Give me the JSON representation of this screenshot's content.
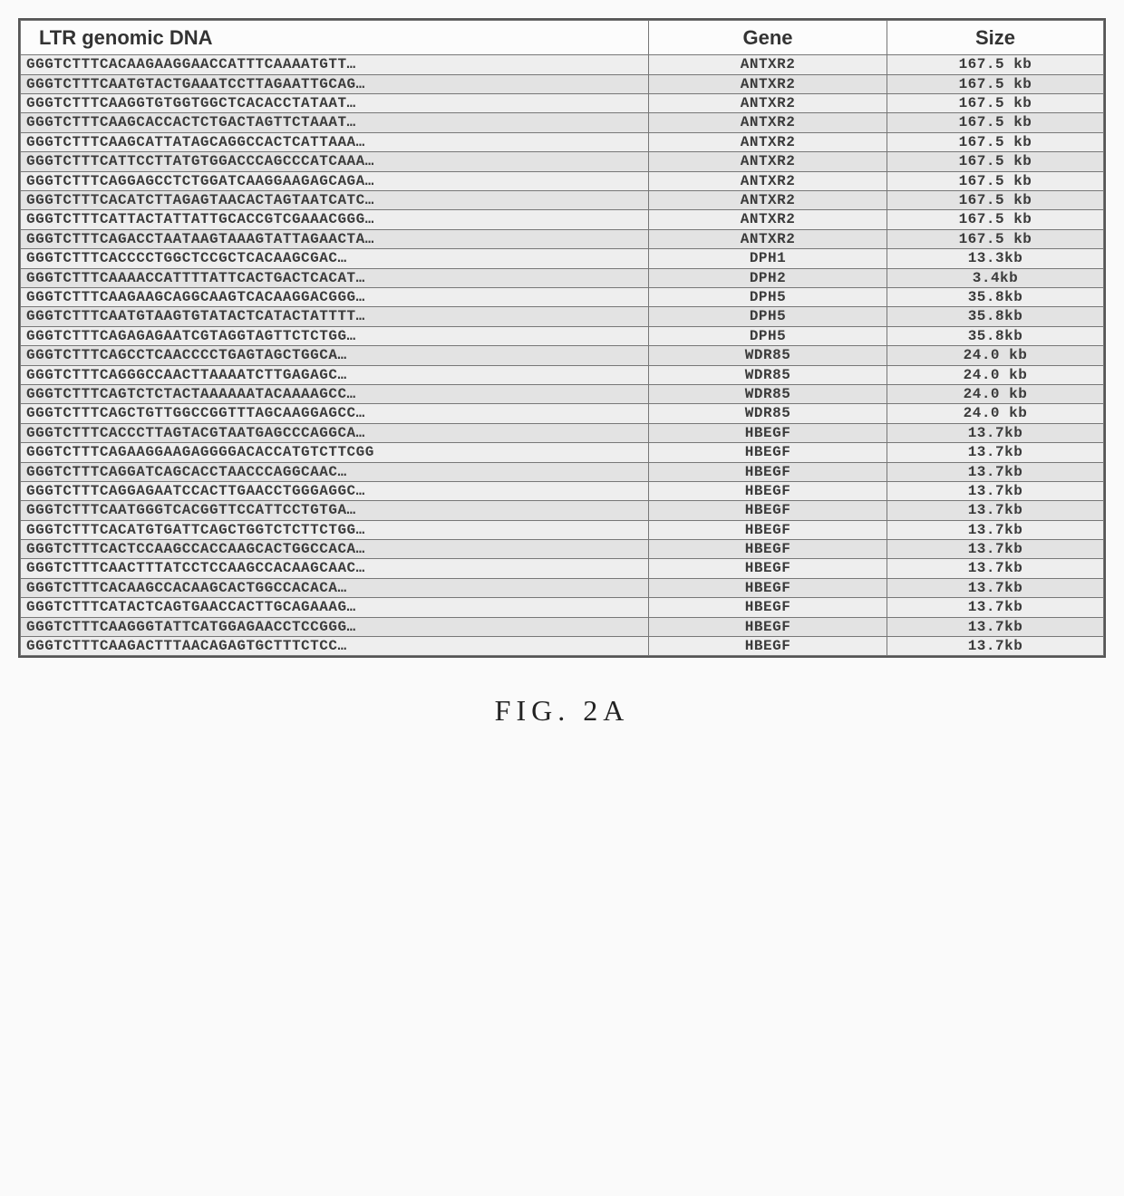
{
  "table": {
    "title_ltr": "LTR       genomic DNA",
    "title_gene": "Gene",
    "title_size": "Size",
    "rows": [
      {
        "dna": "GGGTCTTTCACAAGAAGGAACCATTTCAAAATGTT…",
        "gene": "ANTXR2",
        "size": "167.5 kb"
      },
      {
        "dna": "GGGTCTTTCAATGTACTGAAATCCTTAGAATTGCAG…",
        "gene": "ANTXR2",
        "size": "167.5 kb"
      },
      {
        "dna": "GGGTCTTTCAAGGTGTGGTGGCTCACACCTATAAT…",
        "gene": "ANTXR2",
        "size": "167.5 kb"
      },
      {
        "dna": "GGGTCTTTCAAGCACCACTCTGACTAGTTCTAAAT…",
        "gene": "ANTXR2",
        "size": "167.5 kb"
      },
      {
        "dna": "GGGTCTTTCAAGCATTATAGCAGGCCACTCATTAAA…",
        "gene": "ANTXR2",
        "size": "167.5 kb"
      },
      {
        "dna": "GGGTCTTTCATTCCTTATGTGGACCCAGCCCATCAAA…",
        "gene": "ANTXR2",
        "size": "167.5 kb"
      },
      {
        "dna": "GGGTCTTTCAGGAGCCTCTGGATCAAGGAAGAGCAGA…",
        "gene": "ANTXR2",
        "size": "167.5 kb"
      },
      {
        "dna": "GGGTCTTTCACATCTTAGAGTAACACTAGTAATCATC…",
        "gene": "ANTXR2",
        "size": "167.5 kb"
      },
      {
        "dna": "GGGTCTTTCATTACTATTATTGCACCGTCGAAACGGG…",
        "gene": "ANTXR2",
        "size": "167.5 kb"
      },
      {
        "dna": "GGGTCTTTCAGACCTAATAAGTAAAGTATTAGAACTA…",
        "gene": "ANTXR2",
        "size": "167.5 kb"
      },
      {
        "dna": "GGGTCTTTCACCCCTGGCTCCGCTCACAAGCGAC…",
        "gene": "DPH1",
        "size": "13.3kb"
      },
      {
        "dna": "GGGTCTTTCAAAACCATTTTATTCACTGACTCACAT…",
        "gene": "DPH2",
        "size": "3.4kb"
      },
      {
        "dna": "GGGTCTTTCAAGAAGCAGGCAAGTCACAAGGACGGG…",
        "gene": "DPH5",
        "size": "35.8kb"
      },
      {
        "dna": "GGGTCTTTCAATGTAAGTGTATACTCATACTATTTT…",
        "gene": "DPH5",
        "size": "35.8kb"
      },
      {
        "dna": "GGGTCTTTCAGAGAGAATCGTAGGTAGTTCTCTGG…",
        "gene": "DPH5",
        "size": "35.8kb"
      },
      {
        "dna": "GGGTCTTTCAGCCTCAACCCCTGAGTAGCTGGCA…",
        "gene": "WDR85",
        "size": "24.0 kb"
      },
      {
        "dna": "GGGTCTTTCAGGGCCAACTTAAAATCTTGAGAGC…",
        "gene": "WDR85",
        "size": "24.0 kb"
      },
      {
        "dna": "GGGTCTTTCAGTCTCTACTAAAAAATACAAAAGCC…",
        "gene": "WDR85",
        "size": "24.0 kb"
      },
      {
        "dna": "GGGTCTTTCAGCTGTTGGCCGGTTTAGCAAGGAGCC…",
        "gene": "WDR85",
        "size": "24.0 kb"
      },
      {
        "dna": "GGGTCTTTCACCCTTAGTACGTAATGAGCCCAGGCA…",
        "gene": "HBEGF",
        "size": "13.7kb"
      },
      {
        "dna": "GGGTCTTTCAGAAGGAAGAGGGGACACCATGTCTTCGG",
        "gene": "HBEGF",
        "size": "13.7kb"
      },
      {
        "dna": "GGGTCTTTCAGGATCAGCACCTAACCCAGGCAAC…",
        "gene": "HBEGF",
        "size": "13.7kb"
      },
      {
        "dna": "GGGTCTTTCAGGAGAATCCACTTGAACCTGGGAGGC…",
        "gene": "HBEGF",
        "size": "13.7kb"
      },
      {
        "dna": "GGGTCTTTCAATGGGTCACGGTTCCATTCCTGTGA…",
        "gene": "HBEGF",
        "size": "13.7kb"
      },
      {
        "dna": "GGGTCTTTCACATGTGATTCAGCTGGTCTCTTCTGG…",
        "gene": "HBEGF",
        "size": "13.7kb"
      },
      {
        "dna": "GGGTCTTTCACTCCAAGCCACCAAGCACTGGCCACA…",
        "gene": "HBEGF",
        "size": "13.7kb"
      },
      {
        "dna": "GGGTCTTTCAACTTTATCCTCCAAGCCACAAGCAAC…",
        "gene": "HBEGF",
        "size": "13.7kb"
      },
      {
        "dna": "GGGTCTTTCACAAGCCACAAGCACTGGCCACACA…",
        "gene": "HBEGF",
        "size": "13.7kb"
      },
      {
        "dna": "GGGTCTTTCATACTCAGTGAACCACTTGCAGAAAG…",
        "gene": "HBEGF",
        "size": "13.7kb"
      },
      {
        "dna": "GGGTCTTTCAAGGGTATTCATGGAGAACCTCCGGG…",
        "gene": "HBEGF",
        "size": "13.7kb"
      },
      {
        "dna": "GGGTCTTTCAAGACTTTAACAGAGTGCTTTCTCC…",
        "gene": "HBEGF",
        "size": "13.7kb"
      }
    ],
    "colors": {
      "header_bg": "#fcfcfc",
      "row_odd_bg": "#eeeeee",
      "row_even_bg": "#e3e3e3",
      "border": "#777777",
      "text": "#3b3b3b"
    },
    "font_header_size_pt": 17,
    "font_cell_size_pt": 12,
    "cell_font_family": "Courier New",
    "col_widths_percent": [
      58,
      22,
      20
    ]
  },
  "caption": "FIG. 2A"
}
